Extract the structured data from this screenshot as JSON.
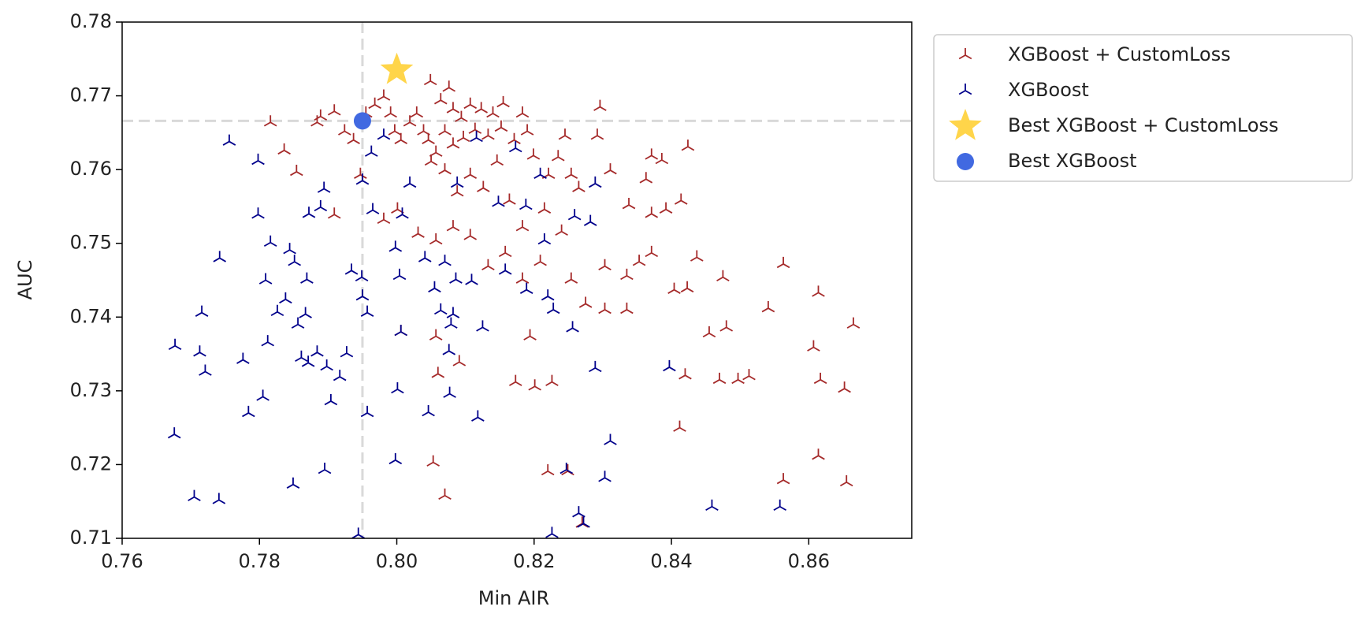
{
  "chart_data": {
    "type": "scatter",
    "x_label": "Min AIR",
    "y_label": "AUC",
    "xlim": [
      0.76,
      0.875
    ],
    "ylim": [
      0.71,
      0.78
    ],
    "xticks": [
      0.76,
      0.78,
      {
        "value": 0.8,
        "label": "0.80"
      },
      0.82,
      0.84,
      0.86
    ],
    "yticks": [
      0.71,
      0.72,
      0.73,
      0.74,
      0.75,
      0.76,
      0.77,
      0.78
    ],
    "grid": false,
    "legend": "outside-right",
    "series": [
      {
        "name": "XGBoost + CustomLoss",
        "color": "#a52a2a",
        "marker": "tri",
        "x": [
          0.7816,
          0.7836,
          0.7854,
          0.7884,
          0.7909,
          0.7889,
          0.7909,
          0.7924,
          0.7937,
          0.7947,
          0.7955,
          0.7968,
          0.7981,
          0.7991,
          0.7997,
          0.8006,
          0.8019,
          0.8029,
          0.8039,
          0.8049,
          0.8064,
          0.8076,
          0.8082,
          0.8094,
          0.8107,
          0.8123,
          0.814,
          0.8155,
          0.8183,
          0.8046,
          0.8057,
          0.807,
          0.8082,
          0.8097,
          0.8114,
          0.8133,
          0.8152,
          0.8171,
          0.819,
          0.805,
          0.807,
          0.8088,
          0.8107,
          0.8126,
          0.8146,
          0.8164,
          0.8199,
          0.8221,
          0.8235,
          0.8245,
          0.8254,
          0.8265,
          0.8292,
          0.8296,
          0.8311,
          0.8338,
          0.8363,
          0.8371,
          0.8386,
          0.8371,
          0.8392,
          0.8414,
          0.8424,
          0.8437,
          0.8475,
          0.8371,
          0.8353,
          0.8335,
          0.8303,
          0.8275,
          0.8303,
          0.8335,
          0.8404,
          0.8423,
          0.8455,
          0.848,
          0.8541,
          0.8563,
          0.8614,
          0.8665,
          0.8607,
          0.8617,
          0.8652,
          0.8513,
          0.8497,
          0.847,
          0.842,
          0.8412,
          0.8563,
          0.8614,
          0.8655,
          0.8173,
          0.8201,
          0.8226,
          0.8194,
          0.822,
          0.8249,
          0.827,
          0.8053,
          0.807,
          0.806,
          0.8057,
          0.8091,
          0.8006,
          0.8133,
          0.8158,
          0.8183,
          0.8209,
          0.8254,
          0.8107,
          0.8057,
          0.8082,
          0.7981,
          0.8001,
          0.8031,
          0.8183,
          0.8215,
          0.824
        ],
        "y": [
          0.7664,
          0.7626,
          0.7597,
          0.7664,
          0.7679,
          0.7672,
          0.7539,
          0.7652,
          0.764,
          0.7593,
          0.7676,
          0.7688,
          0.7699,
          0.7676,
          0.7652,
          0.764,
          0.7664,
          0.7676,
          0.7652,
          0.772,
          0.7694,
          0.7711,
          0.7682,
          0.767,
          0.7688,
          0.7682,
          0.7676,
          0.769,
          0.7676,
          0.764,
          0.7623,
          0.7652,
          0.7634,
          0.7643,
          0.7654,
          0.7646,
          0.7657,
          0.764,
          0.7652,
          0.7611,
          0.7599,
          0.7569,
          0.7593,
          0.7575,
          0.7611,
          0.7558,
          0.7619,
          0.7593,
          0.7617,
          0.7646,
          0.7593,
          0.7575,
          0.7646,
          0.7685,
          0.7599,
          0.7552,
          0.7587,
          0.7619,
          0.7613,
          0.754,
          0.7546,
          0.7558,
          0.7631,
          0.7481,
          0.7454,
          0.7487,
          0.7475,
          0.7456,
          0.7469,
          0.7418,
          0.741,
          0.741,
          0.7437,
          0.7439,
          0.7378,
          0.7386,
          0.7412,
          0.7472,
          0.7433,
          0.739,
          0.7359,
          0.7315,
          0.7303,
          0.732,
          0.7315,
          0.7315,
          0.7321,
          0.725,
          0.7179,
          0.7212,
          0.7176,
          0.7312,
          0.7306,
          0.7312,
          0.7374,
          0.7191,
          0.7191,
          0.712,
          0.7203,
          0.7158,
          0.7323,
          0.7374,
          0.7339,
          0.738,
          0.7469,
          0.7487,
          0.7451,
          0.7475,
          0.7451,
          0.751,
          0.7504,
          0.7522,
          0.7532,
          0.7546,
          0.7513,
          0.7522,
          0.7546,
          0.7516
        ]
      },
      {
        "name": "XGBoost",
        "color": "#00008b",
        "marker": "tri",
        "x": [
          0.7676,
          0.7705,
          0.7741,
          0.7677,
          0.7713,
          0.7721,
          0.7716,
          0.7742,
          0.7756,
          0.7798,
          0.7798,
          0.7776,
          0.7784,
          0.7805,
          0.7809,
          0.7816,
          0.7812,
          0.7826,
          0.7838,
          0.7844,
          0.7851,
          0.7856,
          0.7861,
          0.7867,
          0.7849,
          0.7869,
          0.7871,
          0.7872,
          0.7884,
          0.7889,
          0.7894,
          0.7898,
          0.7895,
          0.7904,
          0.7917,
          0.7927,
          0.7934,
          0.7944,
          0.795,
          0.7949,
          0.795,
          0.7957,
          0.7957,
          0.7963,
          0.7981,
          0.7965,
          0.7998,
          0.8004,
          0.8001,
          0.7998,
          0.8006,
          0.8008,
          0.8019,
          0.8041,
          0.8046,
          0.8055,
          0.8064,
          0.807,
          0.8076,
          0.8077,
          0.8082,
          0.8079,
          0.8086,
          0.8088,
          0.8109,
          0.8118,
          0.8125,
          0.8116,
          0.8148,
          0.8158,
          0.8173,
          0.8189,
          0.8188,
          0.8209,
          0.8215,
          0.822,
          0.8226,
          0.8228,
          0.8247,
          0.8256,
          0.8265,
          0.8259,
          0.8272,
          0.8289,
          0.8289,
          0.8303,
          0.8311,
          0.8397,
          0.8459,
          0.8558,
          0.8282
        ],
        "y": [
          0.7241,
          0.7156,
          0.7152,
          0.7361,
          0.7352,
          0.7326,
          0.7406,
          0.748,
          0.7638,
          0.7612,
          0.7539,
          0.7342,
          0.727,
          0.7292,
          0.745,
          0.7501,
          0.7366,
          0.7407,
          0.7424,
          0.7491,
          0.7475,
          0.739,
          0.7345,
          0.7404,
          0.7173,
          0.7451,
          0.7338,
          0.754,
          0.7352,
          0.7549,
          0.7574,
          0.7333,
          0.7193,
          0.7286,
          0.7319,
          0.7351,
          0.7463,
          0.7105,
          0.7585,
          0.7454,
          0.7428,
          0.7406,
          0.727,
          0.7623,
          0.7646,
          0.7545,
          0.7494,
          0.7456,
          0.7302,
          0.7206,
          0.738,
          0.7539,
          0.7581,
          0.748,
          0.7271,
          0.7439,
          0.7409,
          0.7475,
          0.7354,
          0.7296,
          0.7404,
          0.739,
          0.7451,
          0.7581,
          0.7449,
          0.7264,
          0.7386,
          0.7643,
          0.7555,
          0.7463,
          0.7629,
          0.7437,
          0.7551,
          0.7593,
          0.7504,
          0.7428,
          0.7106,
          0.741,
          0.7193,
          0.7385,
          0.7134,
          0.7537,
          0.712,
          0.7331,
          0.7581,
          0.7182,
          0.7232,
          0.7332,
          0.7143,
          0.7143,
          0.7529
        ]
      },
      {
        "name": "Best XGBoost + CustomLoss",
        "color": "#ffd54a",
        "marker": "star",
        "x": [
          0.8
        ],
        "y": [
          0.7735
        ]
      },
      {
        "name": "Best XGBoost",
        "color": "#4169e1",
        "marker": "circle",
        "x": [
          0.795
        ],
        "y": [
          0.7666
        ]
      }
    ]
  }
}
